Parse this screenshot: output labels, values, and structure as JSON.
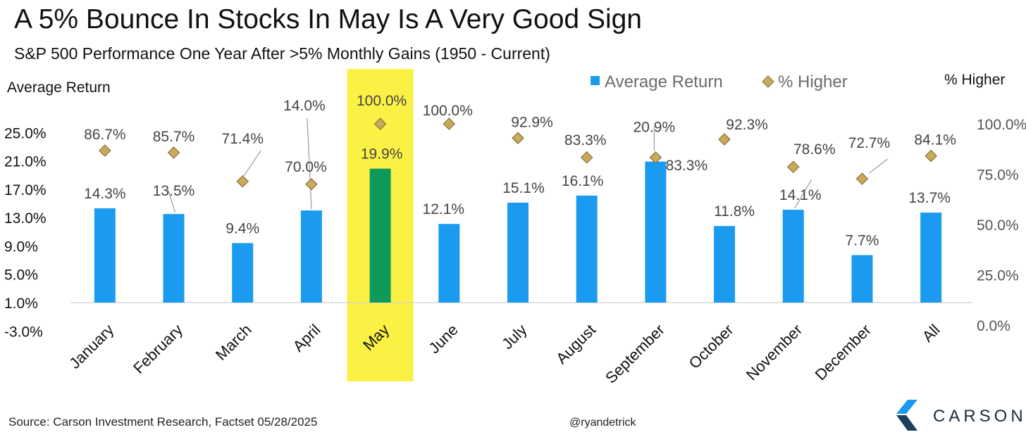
{
  "title": "A 5% Bounce In Stocks In May Is A Very Good Sign",
  "subtitle": "S&P 500 Performance One Year After >5% Monthly Gains (1950 - Current)",
  "source": "Source: Carson Investment Research, Factset 05/28/2025",
  "handle": "@ryandetrick",
  "logo_text": "CARSON",
  "colors": {
    "bar": "#1a9bf0",
    "highlight_bar": "#0f9a5c",
    "highlight_band": "#fbf145",
    "marker": "#c9a95a"
  },
  "chart_data": {
    "type": "bar",
    "categories": [
      "January",
      "February",
      "March",
      "April",
      "May",
      "June",
      "July",
      "August",
      "September",
      "October",
      "November",
      "December",
      "All"
    ],
    "highlight_category": "May",
    "y_left": {
      "label": "Average Return",
      "ticks": [
        "25.0%",
        "21.0%",
        "17.0%",
        "13.0%",
        "9.0%",
        "5.0%",
        "1.0%",
        "-3.0%"
      ],
      "range": [
        -3,
        25
      ]
    },
    "y_right": {
      "label": "% Higher",
      "ticks": [
        "100.0%",
        "75.0%",
        "50.0%",
        "25.0%",
        "0.0%"
      ],
      "range": [
        0,
        100
      ]
    },
    "legend": {
      "position": "top-right"
    },
    "series": [
      {
        "name": "Average Return",
        "type": "bar",
        "axis": "left",
        "values": [
          14.3,
          13.5,
          9.4,
          14.0,
          19.9,
          12.1,
          15.1,
          16.1,
          20.9,
          11.8,
          14.1,
          7.7,
          13.7
        ],
        "labels": [
          "14.3%",
          "13.5%",
          "9.4%",
          "14.0%",
          "19.9%",
          "12.1%",
          "15.1%",
          "16.1%",
          "20.9%",
          "11.8%",
          "14.1%",
          "7.7%",
          "13.7%"
        ]
      },
      {
        "name": "% Higher",
        "type": "scatter",
        "marker": "diamond",
        "axis": "right",
        "values": [
          86.7,
          85.7,
          71.4,
          70.0,
          100.0,
          100.0,
          92.9,
          83.3,
          83.3,
          92.3,
          78.6,
          72.7,
          84.1
        ],
        "labels": [
          "86.7%",
          "85.7%",
          "71.4%",
          "70.0%",
          "100.0%",
          "100.0%",
          "92.9%",
          "83.3%",
          "83.3%",
          "92.3%",
          "78.6%",
          "72.7%",
          "84.1%"
        ]
      }
    ]
  }
}
